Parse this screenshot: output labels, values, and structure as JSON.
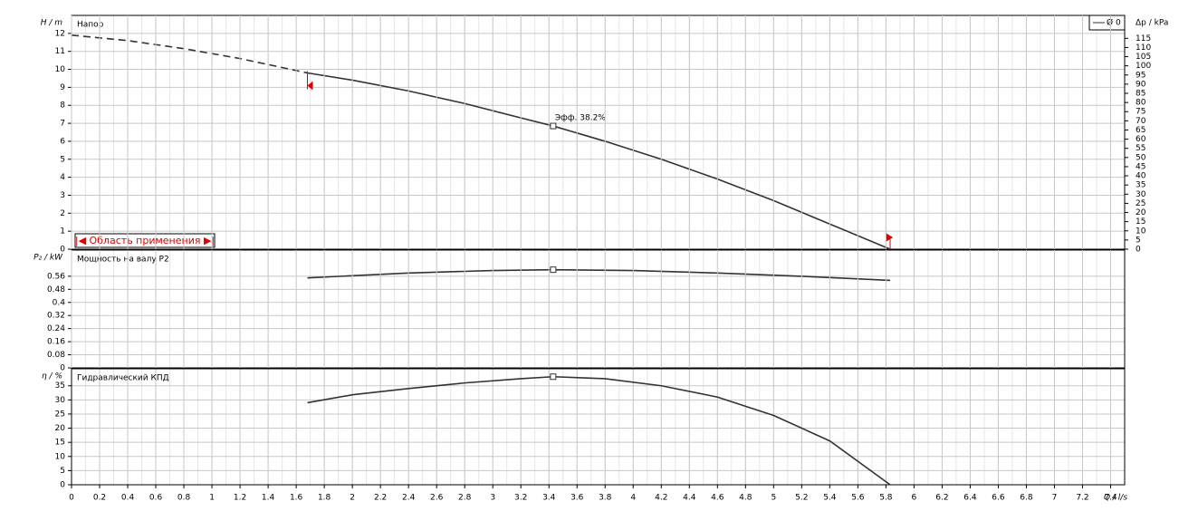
{
  "chart_data": [
    {
      "type": "line",
      "title": "Напор",
      "ylabel": "H / m",
      "y2label": "Δp / kPa",
      "xlim": [
        0,
        7.5
      ],
      "ylim": [
        0,
        13
      ],
      "yticks": [
        0,
        1,
        2,
        3,
        4,
        5,
        6,
        7,
        8,
        9,
        10,
        11,
        12
      ],
      "y2lim": [
        0,
        127.5
      ],
      "y2ticks": [
        0,
        5,
        10,
        15,
        20,
        25,
        30,
        35,
        40,
        45,
        50,
        55,
        60,
        65,
        70,
        75,
        80,
        85,
        90,
        95,
        100,
        105,
        110,
        115
      ],
      "grid": true,
      "legend": "upper right",
      "series": [
        {
          "name": "Ø 0",
          "color": "#333333",
          "line_style": "solid",
          "x": [
            1.68,
            2.0,
            2.4,
            2.8,
            3.2,
            3.43,
            3.8,
            4.2,
            4.6,
            5.0,
            5.4,
            5.83
          ],
          "values": [
            9.8,
            9.4,
            8.8,
            8.1,
            7.3,
            6.85,
            6.0,
            5.0,
            3.9,
            2.7,
            1.4,
            0
          ]
        },
        {
          "color": "#333333",
          "line_style": "dashed",
          "x": [
            0,
            0.4,
            0.8,
            1.2,
            1.68
          ],
          "values": [
            11.9,
            11.6,
            11.15,
            10.6,
            9.8
          ]
        }
      ],
      "operating_point": {
        "x": 3.43,
        "y": 6.85
      },
      "annotations": [
        {
          "text": "Эфф. 38.2%"
        }
      ],
      "range": [
        1.68,
        5.83
      ],
      "range_color": "#e00000",
      "range_label": "|◀ Область применения ▶|"
    },
    {
      "type": "line",
      "title": "Мощность на валу P2",
      "ylabel": "P₂ / kW",
      "xlim": [
        0,
        7.5
      ],
      "ylim": [
        0,
        0.72
      ],
      "yticks": [
        0,
        0.08,
        0.16,
        0.24,
        0.32,
        0.4,
        0.48,
        0.56
      ],
      "grid": true,
      "series": [
        {
          "color": "#333333",
          "line_style": "solid",
          "x": [
            1.68,
            2.4,
            3.0,
            3.43,
            4.0,
            4.6,
            5.2,
            5.83
          ],
          "values": [
            0.55,
            0.58,
            0.595,
            0.6,
            0.595,
            0.58,
            0.56,
            0.535
          ]
        }
      ],
      "operating_point": {
        "x": 3.43,
        "y": 0.6
      }
    },
    {
      "type": "line",
      "title": "Гидравлический КПД",
      "ylabel": "η / %",
      "xlabel": "Q / l/s",
      "xlim": [
        0,
        7.5
      ],
      "ylim": [
        0,
        41
      ],
      "yticks": [
        0,
        5,
        10,
        15,
        20,
        25,
        30,
        35
      ],
      "grid": true,
      "xticks": [
        0,
        0.2,
        0.4,
        0.6,
        0.8,
        1,
        1.2,
        1.4,
        1.6,
        1.8,
        2,
        2.2,
        2.4,
        2.6,
        2.8,
        3,
        3.2,
        3.4,
        3.6,
        3.8,
        4,
        4.2,
        4.4,
        4.6,
        4.8,
        5,
        5.2,
        5.4,
        5.6,
        5.8,
        6,
        6.2,
        6.4,
        6.6,
        6.8,
        7,
        7.2,
        7.4
      ],
      "series": [
        {
          "color": "#333333",
          "line_style": "solid",
          "x": [
            1.68,
            2.0,
            2.4,
            2.8,
            3.2,
            3.43,
            3.8,
            4.2,
            4.6,
            5.0,
            5.4,
            5.83
          ],
          "values": [
            29,
            31.8,
            34,
            36,
            37.5,
            38.2,
            37.5,
            35,
            31,
            24.5,
            15.5,
            0
          ]
        }
      ],
      "operating_point": {
        "x": 3.43,
        "y": 38.2
      }
    }
  ]
}
